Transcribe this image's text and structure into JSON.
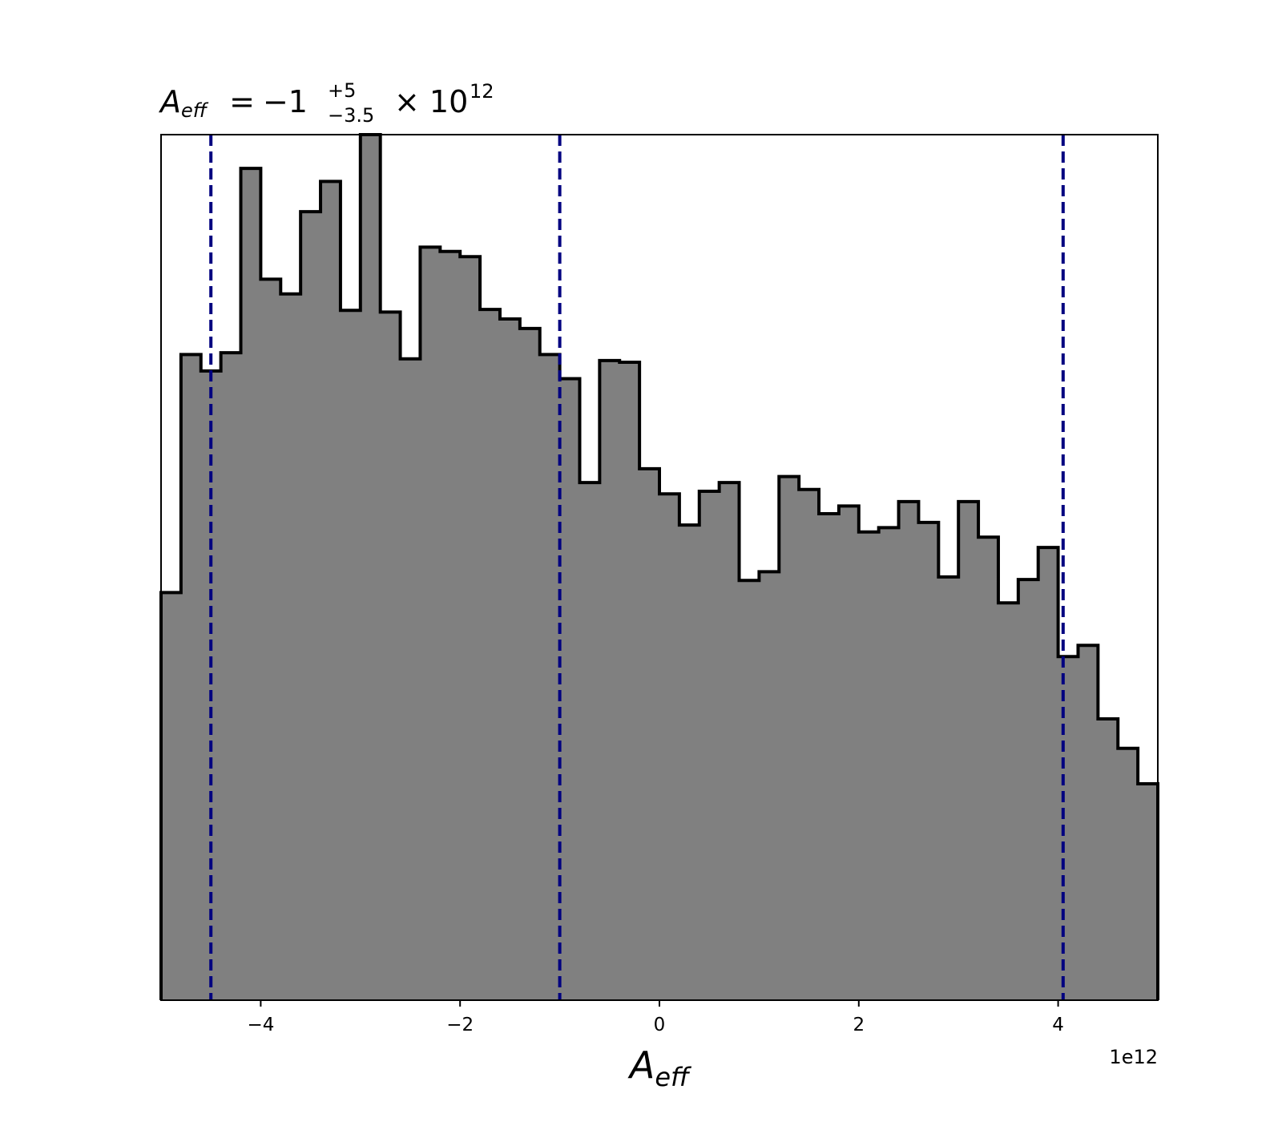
{
  "chart_data": {
    "type": "histogram",
    "title": {
      "symbol": "A",
      "symbol_sub": "eff",
      "equals": "=",
      "value": "−1",
      "plus": "+5",
      "minus": "−3.5",
      "times_ten": "× 10",
      "exponent": "12"
    },
    "xlabel": {
      "symbol": "A",
      "symbol_sub": "eff"
    },
    "x_offset_label": "1e12",
    "x_tick_labels": [
      "−4",
      "−2",
      "0",
      "2",
      "4"
    ],
    "x_ticks": [
      -4,
      -2,
      0,
      2,
      4
    ],
    "xlim": [
      -5,
      5
    ],
    "ylim": [
      0,
      1.0
    ],
    "y_ticks_visible": false,
    "grid": false,
    "fill_color": "#808080",
    "edge_color": "#000000",
    "bin_edges": [
      -5.0,
      -4.8,
      -4.6,
      -4.4,
      -4.2,
      -4.0,
      -3.8,
      -3.6,
      -3.4,
      -3.2,
      -3.0,
      -2.8,
      -2.6,
      -2.4,
      -2.2,
      -2.0,
      -1.8,
      -1.6,
      -1.4,
      -1.2,
      -1.0,
      -0.8,
      -0.6,
      -0.4,
      -0.2,
      0.0,
      0.2,
      0.4,
      0.6,
      0.8,
      1.0,
      1.2,
      1.4,
      1.6,
      1.8,
      2.0,
      2.2,
      2.4,
      2.6,
      2.8,
      3.0,
      3.2,
      3.4,
      3.6,
      3.8,
      4.0,
      4.2,
      4.4,
      4.6,
      4.8,
      5.0
    ],
    "values": [
      0.471,
      0.746,
      0.727,
      0.748,
      0.961,
      0.833,
      0.816,
      0.911,
      0.946,
      0.797,
      1.0,
      0.795,
      0.741,
      0.87,
      0.865,
      0.859,
      0.798,
      0.787,
      0.776,
      0.746,
      0.718,
      0.598,
      0.739,
      0.737,
      0.614,
      0.585,
      0.549,
      0.588,
      0.598,
      0.485,
      0.495,
      0.605,
      0.59,
      0.562,
      0.571,
      0.541,
      0.546,
      0.576,
      0.552,
      0.489,
      0.576,
      0.535,
      0.459,
      0.486,
      0.523,
      0.397,
      0.41,
      0.325,
      0.291,
      0.25
    ],
    "vlines": [
      -4.5,
      -1.0,
      4.05
    ],
    "vline_color": "#000080",
    "vline_style": "dashed"
  }
}
